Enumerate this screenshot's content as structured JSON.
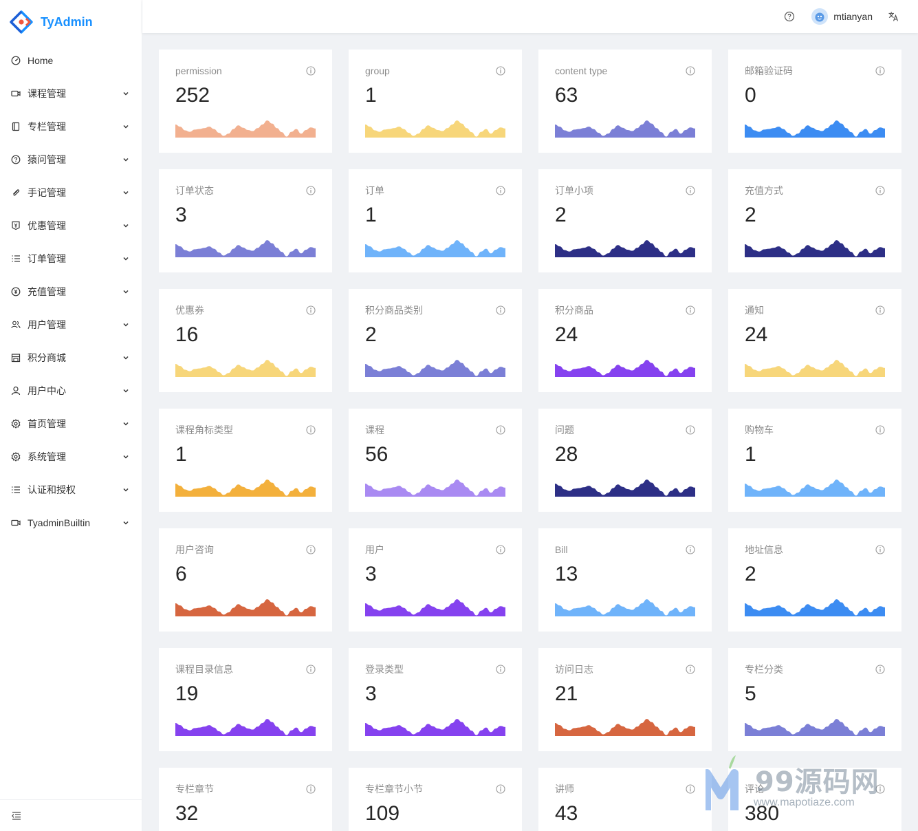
{
  "app": {
    "logo_text": "TyAdmin"
  },
  "header": {
    "username": "mtianyan"
  },
  "sidebar": {
    "items": [
      {
        "label": "Home",
        "icon": "dashboard-icon",
        "expandable": false
      },
      {
        "label": "课程管理",
        "icon": "video-camera-icon",
        "expandable": true
      },
      {
        "label": "专栏管理",
        "icon": "book-icon",
        "expandable": true
      },
      {
        "label": "猿问管理",
        "icon": "question-circle-icon",
        "expandable": true
      },
      {
        "label": "手记管理",
        "icon": "paper-clip-icon",
        "expandable": true
      },
      {
        "label": "优惠管理",
        "icon": "money-collect-icon",
        "expandable": true
      },
      {
        "label": "订单管理",
        "icon": "ordered-list-icon",
        "expandable": true
      },
      {
        "label": "充值管理",
        "icon": "pay-circle-icon",
        "expandable": true
      },
      {
        "label": "用户管理",
        "icon": "usergroup-icon",
        "expandable": true
      },
      {
        "label": "积分商城",
        "icon": "shop-icon",
        "expandable": true
      },
      {
        "label": "用户中心",
        "icon": "user-icon",
        "expandable": true
      },
      {
        "label": "首页管理",
        "icon": "setting-icon",
        "expandable": true
      },
      {
        "label": "系统管理",
        "icon": "setting-icon",
        "expandable": true
      },
      {
        "label": "认证和授权",
        "icon": "unordered-list-icon",
        "expandable": true
      },
      {
        "label": "TyadminBuiltin",
        "icon": "video-camera-icon",
        "expandable": true
      }
    ]
  },
  "cards": [
    {
      "title": "permission",
      "value": "252",
      "color": "#f2b08f"
    },
    {
      "title": "group",
      "value": "1",
      "color": "#f7d67a"
    },
    {
      "title": "content type",
      "value": "63",
      "color": "#7b7fd6"
    },
    {
      "title": "邮箱验证码",
      "value": "0",
      "color": "#3c8cf2"
    },
    {
      "title": "订单状态",
      "value": "3",
      "color": "#7b7fd6"
    },
    {
      "title": "订单",
      "value": "1",
      "color": "#6fb3fa"
    },
    {
      "title": "订单小项",
      "value": "2",
      "color": "#2d2f86"
    },
    {
      "title": "充值方式",
      "value": "2",
      "color": "#2d2f86"
    },
    {
      "title": "优惠券",
      "value": "16",
      "color": "#f7d67a"
    },
    {
      "title": "积分商品类别",
      "value": "2",
      "color": "#7b7fd6"
    },
    {
      "title": "积分商品",
      "value": "24",
      "color": "#8542ef"
    },
    {
      "title": "通知",
      "value": "24",
      "color": "#f7d67a"
    },
    {
      "title": "课程角标类型",
      "value": "1",
      "color": "#f3b03c"
    },
    {
      "title": "课程",
      "value": "56",
      "color": "#a98af2"
    },
    {
      "title": "问题",
      "value": "28",
      "color": "#2d2f86"
    },
    {
      "title": "购物车",
      "value": "1",
      "color": "#6fb3fa"
    },
    {
      "title": "用户咨询",
      "value": "6",
      "color": "#d66640"
    },
    {
      "title": "用户",
      "value": "3",
      "color": "#8542ef"
    },
    {
      "title": "Bill",
      "value": "13",
      "color": "#6fb3fa"
    },
    {
      "title": "地址信息",
      "value": "2",
      "color": "#3c8cf2"
    },
    {
      "title": "课程目录信息",
      "value": "19",
      "color": "#8542ef"
    },
    {
      "title": "登录类型",
      "value": "3",
      "color": "#8542ef"
    },
    {
      "title": "访问日志",
      "value": "21",
      "color": "#d66640"
    },
    {
      "title": "专栏分类",
      "value": "5",
      "color": "#7b7fd6"
    },
    {
      "title": "专栏章节",
      "value": "32",
      "color": "#7b7fd6"
    },
    {
      "title": "专栏章节小节",
      "value": "109",
      "color": "#7b7fd6"
    },
    {
      "title": "讲师",
      "value": "43",
      "color": "#7b7fd6"
    },
    {
      "title": "评论",
      "value": "380",
      "color": "#7b7fd6"
    }
  ],
  "watermark": {
    "text": "99源码网",
    "sub": "www.mapotiaze.com"
  }
}
